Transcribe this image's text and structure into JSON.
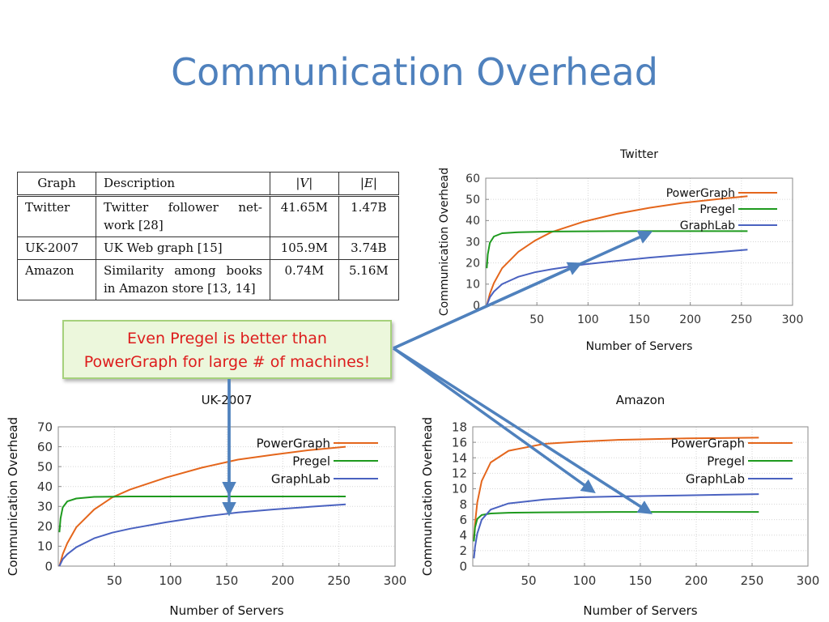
{
  "slide": {
    "title": "Communication Overhead"
  },
  "table": {
    "headers": [
      "Graph",
      "Description",
      "|V|",
      "|E|"
    ],
    "rows": [
      {
        "graph": "Twitter",
        "desc_line1": "Twitter follower net-",
        "desc_line2": "work [28]",
        "v": "41.65M",
        "e": "1.47B"
      },
      {
        "graph": "UK-2007",
        "desc_line1": "UK Web graph [15]",
        "desc_line2": "",
        "v": "105.9M",
        "e": "3.74B"
      },
      {
        "graph": "Amazon",
        "desc_line1": "Similarity among books",
        "desc_line2": "in Amazon store [13, 14]",
        "v": "0.74M",
        "e": "5.16M"
      }
    ]
  },
  "callout": {
    "line1": "Even Pregel is better than",
    "line2": "PowerGraph for large # of machines!"
  },
  "colors": {
    "powergraph": "#e4661c",
    "pregel": "#1e9a1e",
    "graphlab": "#4a62c0",
    "arrow": "#4f81bd"
  },
  "chart_data": [
    {
      "type": "line",
      "title": "Twitter",
      "xlabel": "Number of Servers",
      "ylabel": "Communication Overhead",
      "xlim": [
        0,
        300
      ],
      "ylim": [
        0,
        60
      ],
      "xticks": [
        50,
        100,
        150,
        200,
        250,
        300
      ],
      "yticks": [
        0,
        10,
        20,
        30,
        40,
        50,
        60
      ],
      "grid": true,
      "legend": "top-right",
      "series": [
        {
          "name": "PowerGraph",
          "color": "#e4661c",
          "x": [
            1,
            4,
            8,
            16,
            32,
            48,
            64,
            96,
            128,
            160,
            192,
            224,
            256
          ],
          "y": [
            0,
            5.5,
            10.5,
            17.5,
            25.3,
            30.5,
            34.5,
            39.5,
            43.2,
            46,
            48.3,
            50,
            51.5
          ]
        },
        {
          "name": "Pregel",
          "color": "#1e9a1e",
          "x": [
            1,
            2,
            4,
            8,
            16,
            32,
            64,
            128,
            256
          ],
          "y": [
            17.5,
            24,
            29.5,
            32.5,
            34,
            34.5,
            34.8,
            35,
            35
          ]
        },
        {
          "name": "GraphLab",
          "color": "#4a62c0",
          "x": [
            1,
            4,
            8,
            16,
            32,
            48,
            64,
            96,
            128,
            160,
            192,
            224,
            256
          ],
          "y": [
            0,
            3.8,
            6.5,
            10,
            13.5,
            15.6,
            17,
            19.3,
            21,
            22.5,
            23.8,
            25,
            26.3
          ]
        }
      ]
    },
    {
      "type": "line",
      "title": "UK-2007",
      "xlabel": "Number of Servers",
      "ylabel": "Communication Overhead",
      "xlim": [
        0,
        300
      ],
      "ylim": [
        0,
        70
      ],
      "xticks": [
        50,
        100,
        150,
        200,
        250,
        300
      ],
      "yticks": [
        0,
        10,
        20,
        30,
        40,
        50,
        60,
        70
      ],
      "grid": true,
      "legend": "top-right",
      "series": [
        {
          "name": "PowerGraph",
          "color": "#e4661c",
          "x": [
            1,
            4,
            8,
            16,
            32,
            48,
            64,
            96,
            128,
            160,
            192,
            224,
            256
          ],
          "y": [
            0,
            6,
            11.5,
            19.5,
            28.5,
            34.5,
            38.5,
            44.5,
            49.5,
            53.5,
            56,
            58.3,
            60
          ]
        },
        {
          "name": "Pregel",
          "color": "#1e9a1e",
          "x": [
            1,
            2,
            4,
            8,
            16,
            32,
            64,
            128,
            256
          ],
          "y": [
            17,
            24,
            29.5,
            32.5,
            34,
            34.8,
            35,
            35,
            35
          ]
        },
        {
          "name": "GraphLab",
          "color": "#4a62c0",
          "x": [
            1,
            4,
            8,
            16,
            32,
            48,
            64,
            96,
            128,
            160,
            192,
            224,
            256
          ],
          "y": [
            0,
            3.5,
            6,
            9.5,
            14,
            16.8,
            18.8,
            22,
            24.8,
            27,
            28.5,
            29.8,
            31
          ]
        }
      ]
    },
    {
      "type": "line",
      "title": "Amazon",
      "xlabel": "Number of Servers",
      "ylabel": "Communication Overhead",
      "xlim": [
        0,
        300
      ],
      "ylim": [
        0,
        18
      ],
      "xticks": [
        50,
        100,
        150,
        200,
        250,
        300
      ],
      "yticks": [
        0,
        2,
        4,
        6,
        8,
        10,
        12,
        14,
        16,
        18
      ],
      "grid": true,
      "legend": "top-right",
      "series": [
        {
          "name": "PowerGraph",
          "color": "#e4661c",
          "x": [
            1,
            2,
            4,
            8,
            16,
            32,
            64,
            96,
            128,
            192,
            256
          ],
          "y": [
            3.5,
            5.5,
            8.2,
            11,
            13.4,
            14.9,
            15.8,
            16.1,
            16.3,
            16.5,
            16.6
          ]
        },
        {
          "name": "Pregel",
          "color": "#1e9a1e",
          "x": [
            1,
            2,
            4,
            8,
            16,
            32,
            64,
            128,
            256
          ],
          "y": [
            3.2,
            5,
            6.1,
            6.6,
            6.8,
            6.9,
            6.95,
            7,
            7
          ]
        },
        {
          "name": "GraphLab",
          "color": "#4a62c0",
          "x": [
            1,
            2,
            4,
            8,
            16,
            32,
            64,
            96,
            128,
            192,
            256
          ],
          "y": [
            1,
            2.5,
            4.2,
            6,
            7.3,
            8.1,
            8.6,
            8.9,
            9,
            9.15,
            9.3
          ]
        }
      ]
    }
  ]
}
